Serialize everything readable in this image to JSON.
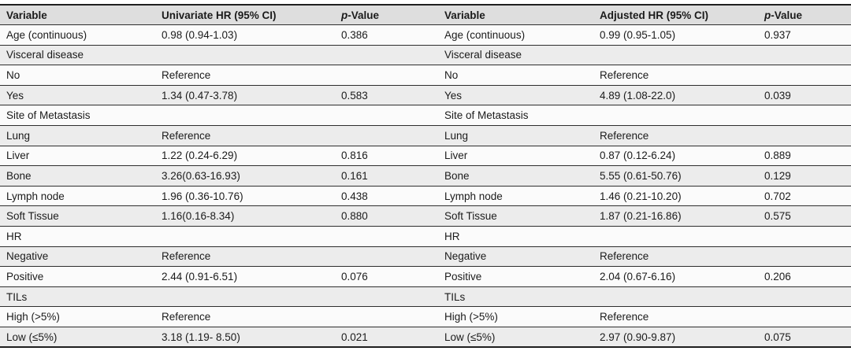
{
  "colors": {
    "header_bg": "#dedede",
    "row_even_bg": "#ececec",
    "row_odd_bg": "#fbfbfb",
    "rule": "#2e2e2e",
    "outer_rule": "#1f1f1f",
    "text": "#1b1b1b"
  },
  "table": {
    "headers": {
      "variable_left": "Variable",
      "univariate": "Univariate HR (95% CI)",
      "variable_right": "Variable",
      "adjusted": "Adjusted HR (95% CI)",
      "p_italic": "p",
      "p_rest": "-Value"
    },
    "rows": [
      {
        "cells": [
          "Age (continuous)",
          "0.98 (0.94-1.03)",
          "0.386",
          "Age (continuous)",
          "0.99 (0.95-1.05)",
          "0.937"
        ]
      },
      {
        "cells": [
          "Visceral disease",
          "",
          "",
          "Visceral disease",
          "",
          ""
        ]
      },
      {
        "cells": [
          "No",
          "Reference",
          "",
          "No",
          "Reference",
          ""
        ]
      },
      {
        "cells": [
          "Yes",
          "1.34 (0.47-3.78)",
          "0.583",
          "Yes",
          "4.89 (1.08-22.0)",
          "0.039"
        ]
      },
      {
        "cells": [
          "Site of Metastasis",
          "",
          "",
          "Site of Metastasis",
          "",
          ""
        ]
      },
      {
        "cells": [
          "Lung",
          "Reference",
          "",
          "Lung",
          "Reference",
          ""
        ]
      },
      {
        "cells": [
          "Liver",
          "1.22 (0.24-6.29)",
          "0.816",
          "Liver",
          "0.87 (0.12-6.24)",
          "0.889"
        ]
      },
      {
        "cells": [
          "Bone",
          "3.26(0.63-16.93)",
          "0.161",
          "Bone",
          "5.55 (0.61-50.76)",
          "0.129"
        ]
      },
      {
        "cells": [
          "Lymph node",
          "1.96 (0.36-10.76)",
          "0.438",
          "Lymph node",
          "1.46 (0.21-10.20)",
          "0.702"
        ]
      },
      {
        "cells": [
          "Soft Tissue",
          "1.16(0.16-8.34)",
          "0.880",
          "Soft Tissue",
          "1.87 (0.21-16.86)",
          "0.575"
        ]
      },
      {
        "cells": [
          "HR",
          "",
          "",
          "HR",
          "",
          ""
        ]
      },
      {
        "cells": [
          "Negative",
          "Reference",
          "",
          "Negative",
          "Reference",
          ""
        ]
      },
      {
        "cells": [
          "Positive",
          "2.44 (0.91-6.51)",
          "0.076",
          "Positive",
          "2.04 (0.67-6.16)",
          "0.206"
        ]
      },
      {
        "cells": [
          "TILs",
          "",
          "",
          "TILs",
          "",
          ""
        ]
      },
      {
        "cells": [
          "High (>5%)",
          "Reference",
          "",
          "High (>5%)",
          "Reference",
          ""
        ]
      },
      {
        "cells": [
          "Low (≤5%)",
          "3.18 (1.19- 8.50)",
          "0.021",
          "Low (≤5%)",
          "2.97 (0.90-9.87)",
          "0.075"
        ]
      }
    ]
  }
}
